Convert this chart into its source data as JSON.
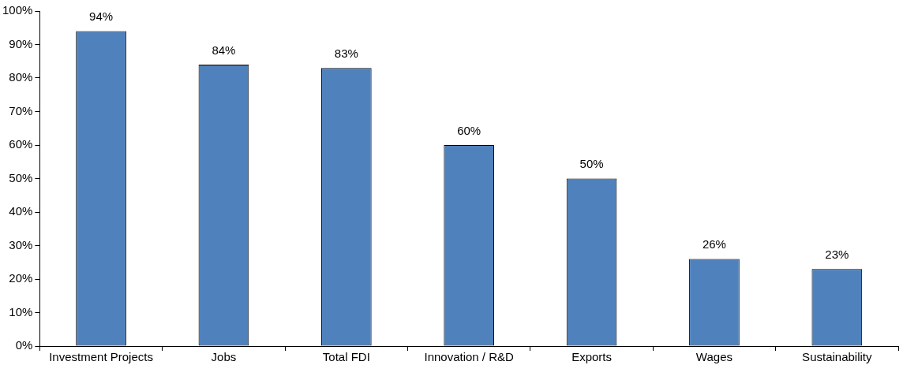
{
  "chart_data": {
    "type": "bar",
    "categories": [
      "Investment Projects",
      "Jobs",
      "Total FDI",
      "Innovation / R&D",
      "Exports",
      "Wages",
      "Sustainability"
    ],
    "values": [
      94,
      84,
      83,
      60,
      50,
      26,
      23
    ],
    "value_labels": [
      "94%",
      "84%",
      "83%",
      "60%",
      "50%",
      "26%",
      "23%"
    ],
    "color": "#4f81bd",
    "ylim": [
      0,
      100
    ],
    "yticks": [
      {
        "value": 0,
        "label": "0%"
      },
      {
        "value": 10,
        "label": "10%"
      },
      {
        "value": 20,
        "label": "20%"
      },
      {
        "value": 30,
        "label": "30%"
      },
      {
        "value": 40,
        "label": "40%"
      },
      {
        "value": 50,
        "label": "50%"
      },
      {
        "value": 60,
        "label": "60%"
      },
      {
        "value": 70,
        "label": "70%"
      },
      {
        "value": 80,
        "label": "80%"
      },
      {
        "value": 90,
        "label": "90%"
      },
      {
        "value": 100,
        "label": "100%"
      }
    ],
    "grid": false,
    "legend": false
  }
}
